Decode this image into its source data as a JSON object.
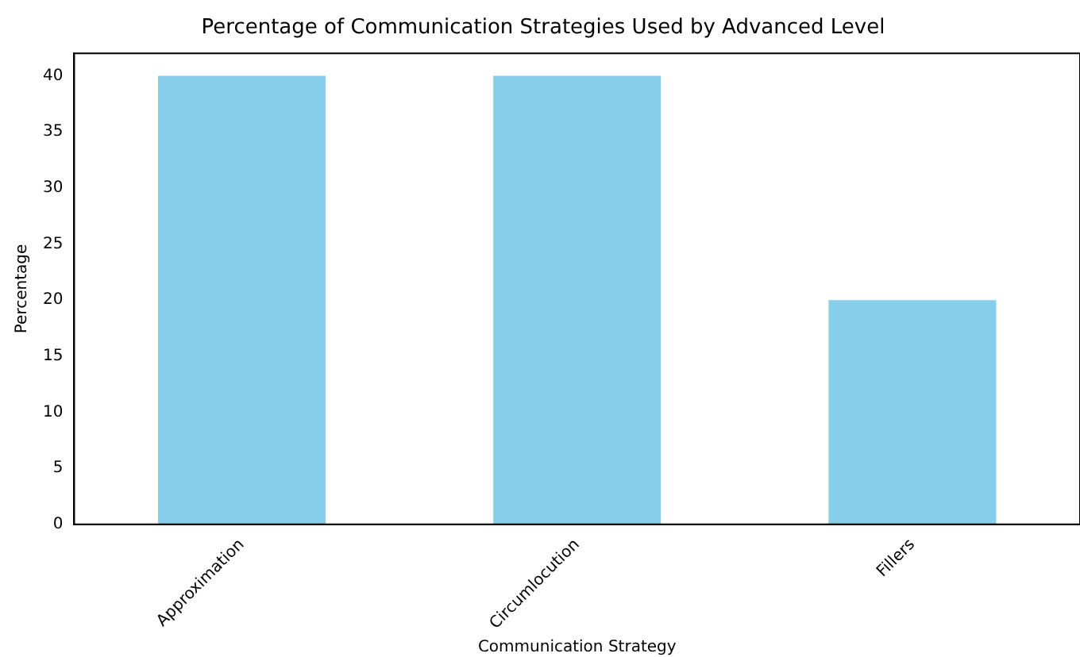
{
  "chart_data": {
    "type": "bar",
    "title": "Percentage of Communication Strategies Used by Advanced Level",
    "xlabel": "Communication Strategy",
    "ylabel": "Percentage",
    "categories": [
      "Approximation",
      "Circumlocution",
      "Fillers"
    ],
    "values": [
      40,
      40,
      20
    ],
    "color": "#87ceeb",
    "ylim": [
      0,
      42
    ],
    "yticks": [
      0,
      5,
      10,
      15,
      20,
      25,
      30,
      35,
      40
    ],
    "grid": false,
    "legend": false
  }
}
